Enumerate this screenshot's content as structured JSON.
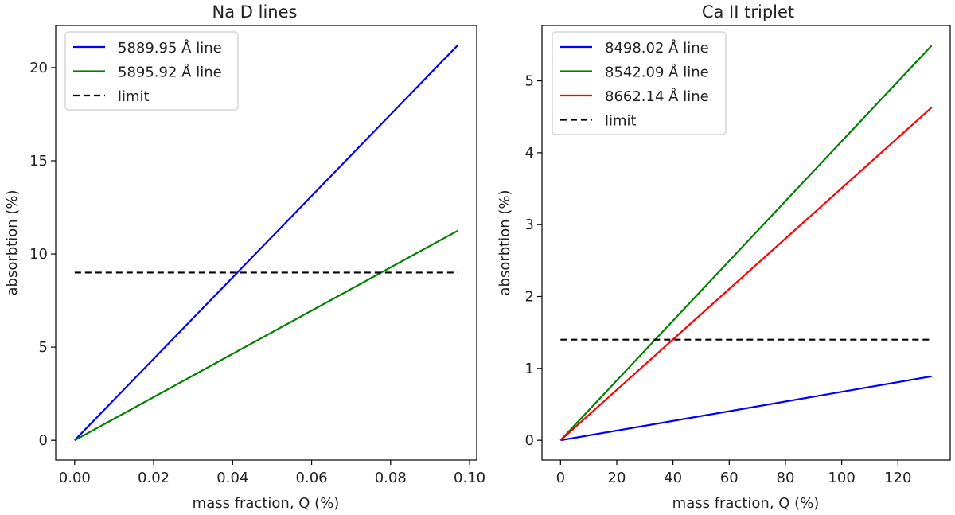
{
  "chart_data": [
    {
      "type": "line",
      "title": "Na D lines",
      "xlabel": "mass fraction, Q (%)",
      "ylabel": "absorbtion (%)",
      "xlim": [
        -0.0048,
        0.1018
      ],
      "ylim": [
        -1.06,
        22.26
      ],
      "xticks": [
        0.0,
        0.02,
        0.04,
        0.06,
        0.08,
        0.1
      ],
      "xtick_labels": [
        "0.00",
        "0.02",
        "0.04",
        "0.06",
        "0.08",
        "0.10"
      ],
      "yticks": [
        0,
        5,
        10,
        15,
        20
      ],
      "ytick_labels": [
        "0",
        "5",
        "10",
        "15",
        "20"
      ],
      "legend_position": "upper-left",
      "series": [
        {
          "name": "5889.95 Å line",
          "color": "#0000ff",
          "dashed": false,
          "x": [
            0,
            0.097
          ],
          "y": [
            0,
            21.2
          ]
        },
        {
          "name": "5895.92 Å line",
          "color": "#008000",
          "dashed": false,
          "x": [
            0,
            0.097
          ],
          "y": [
            0,
            11.25
          ]
        },
        {
          "name": "limit",
          "color": "#000000",
          "dashed": true,
          "x": [
            0,
            0.097
          ],
          "y": [
            9.0,
            9.0
          ]
        }
      ]
    },
    {
      "type": "line",
      "title": "Ca II triplet",
      "xlabel": "mass fraction, Q (%)",
      "ylabel": "absorbtion (%)",
      "xlim": [
        -6.6,
        138.6
      ],
      "ylim": [
        -0.275,
        5.77
      ],
      "xticks": [
        0,
        20,
        40,
        60,
        80,
        100,
        120
      ],
      "xtick_labels": [
        "0",
        "20",
        "40",
        "60",
        "80",
        "100",
        "120"
      ],
      "yticks": [
        0,
        1,
        2,
        3,
        4,
        5
      ],
      "ytick_labels": [
        "0",
        "1",
        "2",
        "3",
        "4",
        "5"
      ],
      "legend_position": "upper-left",
      "series": [
        {
          "name": "8498.02 Å line",
          "color": "#0000ff",
          "dashed": false,
          "x": [
            0,
            132
          ],
          "y": [
            0,
            0.89
          ]
        },
        {
          "name": "8542.09 Å line",
          "color": "#008000",
          "dashed": false,
          "x": [
            0,
            132
          ],
          "y": [
            0,
            5.49
          ]
        },
        {
          "name": "8662.14 Å line",
          "color": "#ff0000",
          "dashed": false,
          "x": [
            0,
            132
          ],
          "y": [
            0,
            4.63
          ]
        },
        {
          "name": "limit",
          "color": "#000000",
          "dashed": true,
          "x": [
            0,
            132
          ],
          "y": [
            1.4,
            1.4
          ]
        }
      ]
    }
  ]
}
